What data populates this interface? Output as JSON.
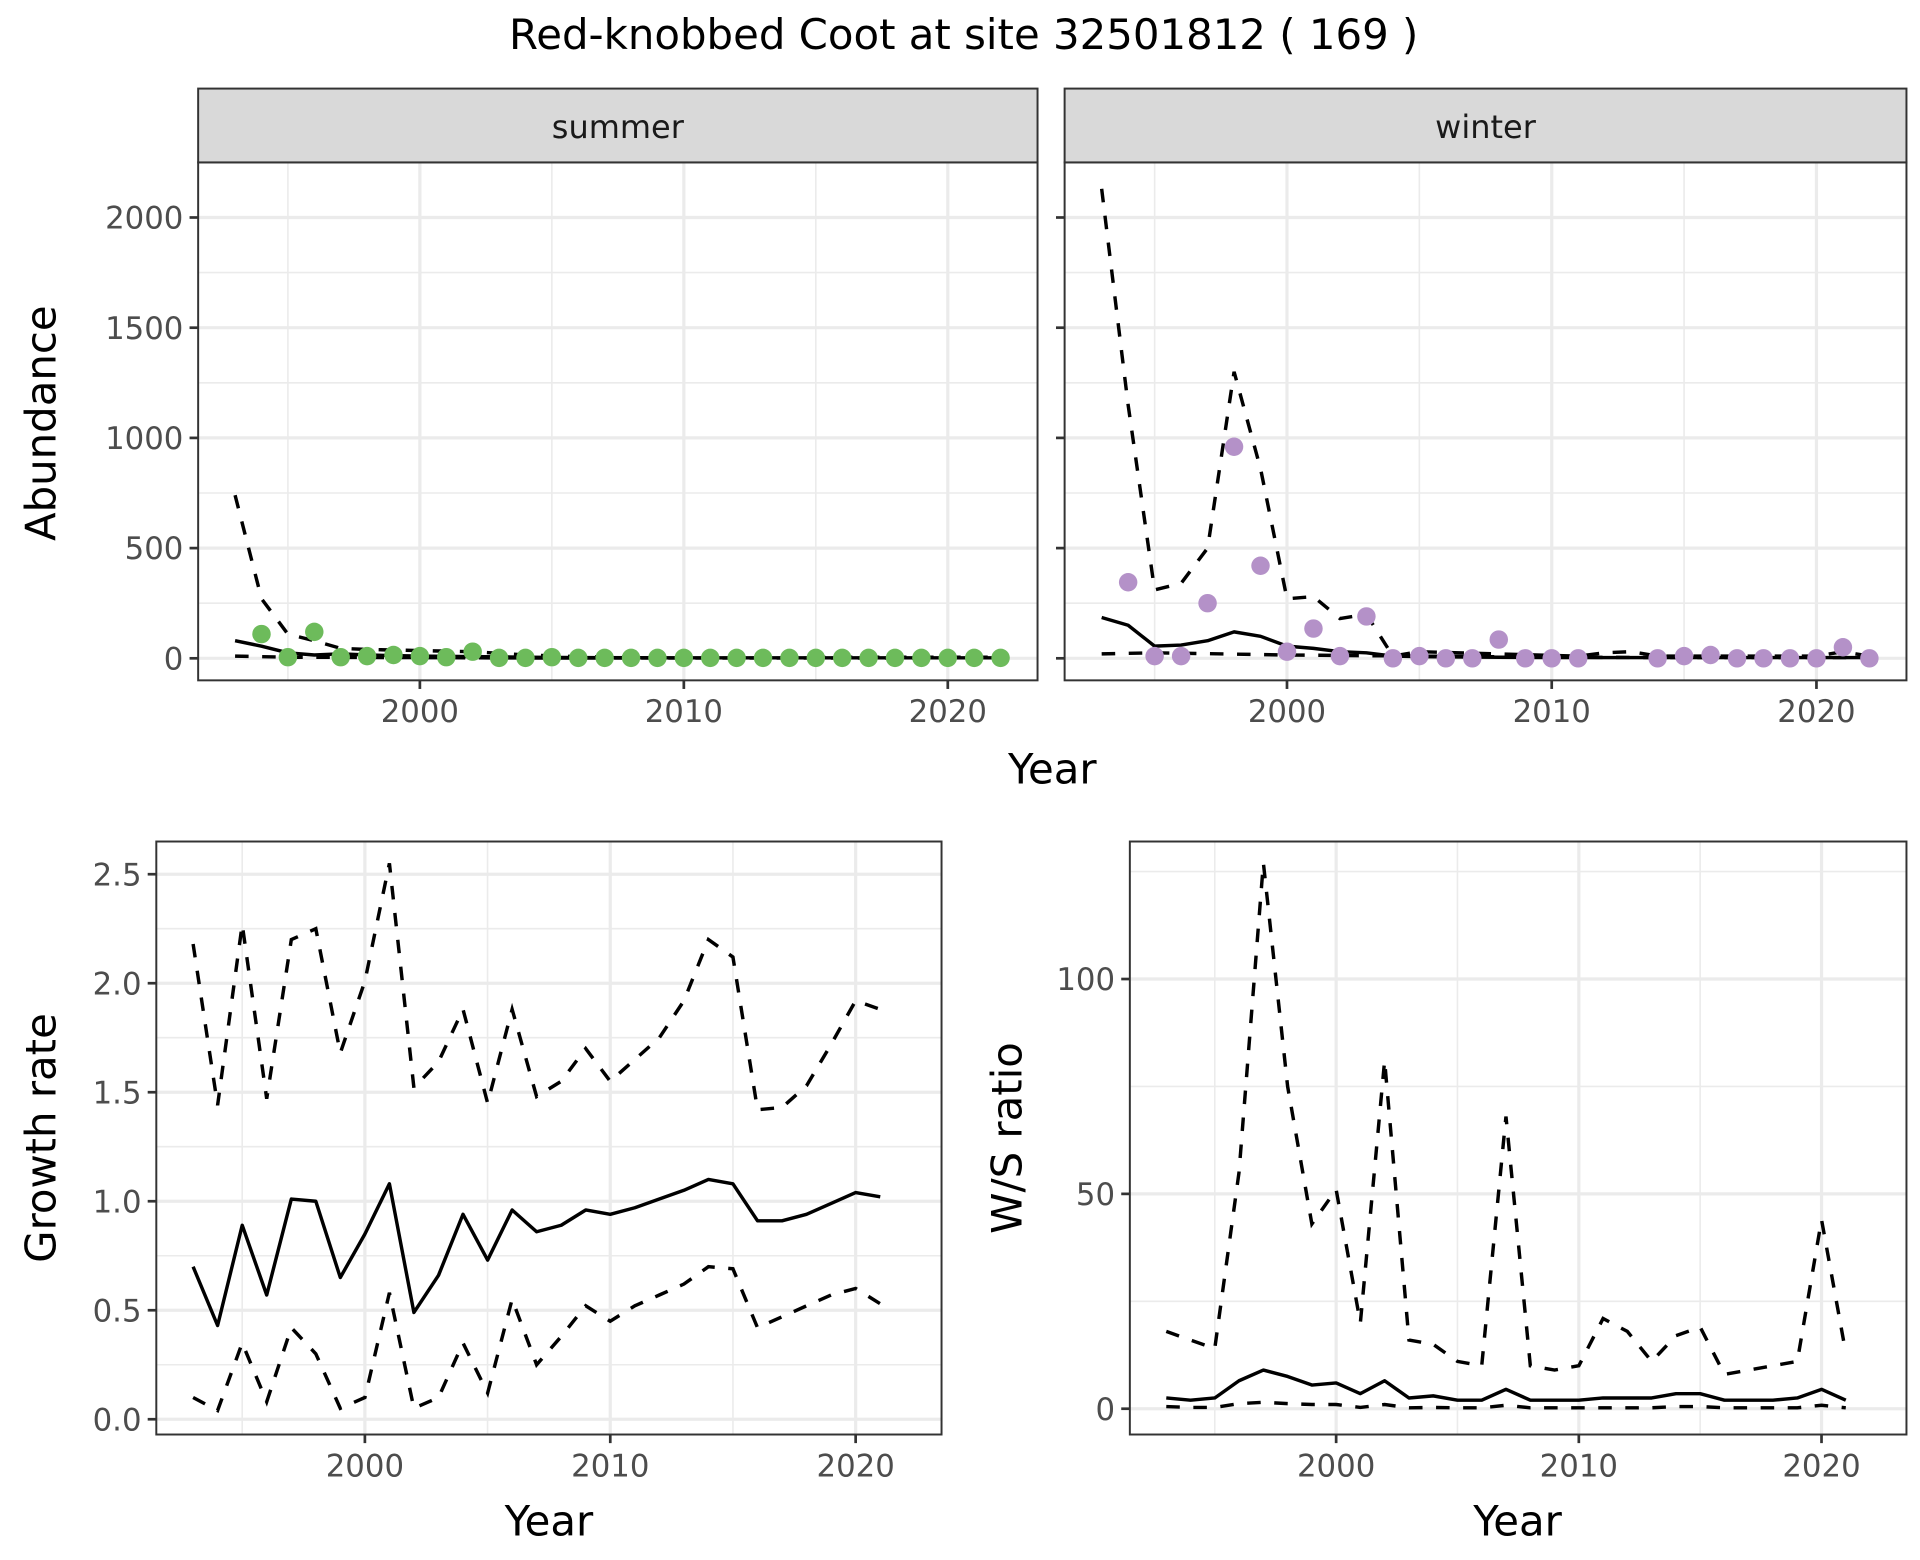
{
  "title": "Red-knobbed Coot at site 32501812 ( 169 )",
  "colors": {
    "summer_points": "#6dbb5b",
    "winter_points": "#b491c8",
    "lines": "#000000",
    "strip_fill": "#d9d9d9",
    "grid": "#ebebeb"
  },
  "chart_data": [
    {
      "type": "scatter",
      "name": "abundance-summer",
      "facet": "summer",
      "xlabel": "Year",
      "ylabel": "Abundance",
      "xlim": [
        1991.6,
        2023.4
      ],
      "ylim": [
        -100,
        2250
      ],
      "x_ticks": [
        2000,
        2010,
        2020
      ],
      "x_tick_labels": [
        "2000",
        "2010",
        "2020"
      ],
      "y_ticks": [
        0,
        500,
        1000,
        1500,
        2000
      ],
      "y_tick_labels": [
        "0",
        "500",
        "1000",
        "1500",
        "2000"
      ],
      "grid": true,
      "points": {
        "x": [
          1994,
          1995,
          1996,
          1997,
          1998,
          1999,
          2000,
          2001,
          2002,
          2003,
          2004,
          2005,
          2006,
          2007,
          2008,
          2009,
          2010,
          2011,
          2012,
          2013,
          2014,
          2015,
          2016,
          2017,
          2018,
          2019,
          2020,
          2021,
          2022
        ],
        "y": [
          110,
          5,
          120,
          5,
          10,
          15,
          10,
          5,
          30,
          2,
          2,
          5,
          2,
          2,
          2,
          2,
          2,
          2,
          2,
          2,
          2,
          2,
          2,
          2,
          2,
          2,
          2,
          2,
          2
        ]
      },
      "series": [
        {
          "name": "fit",
          "style": "solid",
          "x": [
            1993,
            1994,
            1995,
            1996,
            1997,
            1998,
            2000,
            2002,
            2004,
            2006,
            2010,
            2015,
            2020,
            2022
          ],
          "y": [
            80,
            55,
            25,
            15,
            20,
            15,
            10,
            8,
            5,
            3,
            2,
            2,
            2,
            2
          ]
        },
        {
          "name": "upper",
          "style": "dashed",
          "x": [
            1993,
            1994,
            1995,
            1996,
            1997,
            1998,
            2000,
            2002,
            2004,
            2006,
            2010,
            2015,
            2020,
            2022
          ],
          "y": [
            740,
            270,
            110,
            80,
            45,
            40,
            35,
            30,
            15,
            8,
            5,
            5,
            5,
            5
          ]
        },
        {
          "name": "lower",
          "style": "dashed",
          "x": [
            1993,
            1995,
            2000,
            2005,
            2010,
            2015,
            2020,
            2022
          ],
          "y": [
            10,
            5,
            3,
            1,
            1,
            1,
            1,
            1
          ]
        }
      ]
    },
    {
      "type": "scatter",
      "name": "abundance-winter",
      "facet": "winter",
      "xlabel": "Year",
      "ylabel": "Abundance",
      "xlim": [
        1991.6,
        2023.4
      ],
      "ylim": [
        -100,
        2250
      ],
      "x_ticks": [
        2000,
        2010,
        2020
      ],
      "x_tick_labels": [
        "2000",
        "2010",
        "2020"
      ],
      "y_ticks": [
        0,
        500,
        1000,
        1500,
        2000
      ],
      "grid": true,
      "points": {
        "x": [
          1994,
          1995,
          1996,
          1997,
          1998,
          1999,
          2000,
          2001,
          2002,
          2003,
          2004,
          2005,
          2006,
          2007,
          2008,
          2009,
          2010,
          2011,
          2014,
          2015,
          2016,
          2017,
          2018,
          2019,
          2020,
          2021,
          2022
        ],
        "y": [
          345,
          10,
          10,
          250,
          960,
          420,
          30,
          135,
          10,
          190,
          0,
          10,
          0,
          0,
          85,
          0,
          0,
          0,
          0,
          10,
          15,
          0,
          0,
          0,
          0,
          50,
          0
        ]
      },
      "series": [
        {
          "name": "fit",
          "style": "solid",
          "x": [
            1993,
            1994,
            1995,
            1996,
            1997,
            1998,
            1999,
            2000,
            2001,
            2002,
            2003,
            2004,
            2005,
            2008,
            2010,
            2015,
            2020,
            2022
          ],
          "y": [
            185,
            150,
            55,
            60,
            80,
            120,
            100,
            55,
            45,
            30,
            25,
            10,
            8,
            5,
            3,
            3,
            3,
            3
          ]
        },
        {
          "name": "upper",
          "style": "dashed",
          "x": [
            1993,
            1994,
            1995,
            1996,
            1997,
            1998,
            1999,
            2000,
            2001,
            2002,
            2003,
            2004,
            2005,
            2008,
            2011,
            2012,
            2013,
            2014,
            2020,
            2021,
            2022
          ],
          "y": [
            2130,
            1150,
            310,
            340,
            500,
            1300,
            860,
            270,
            280,
            180,
            200,
            10,
            30,
            20,
            10,
            25,
            30,
            10,
            10,
            30,
            10
          ]
        },
        {
          "name": "lower",
          "style": "dashed",
          "x": [
            1993,
            1995,
            2000,
            2005,
            2010,
            2015,
            2020,
            2022
          ],
          "y": [
            20,
            25,
            15,
            10,
            5,
            3,
            3,
            3
          ]
        }
      ]
    },
    {
      "type": "line",
      "name": "growth-rate",
      "xlabel": "Year",
      "ylabel": "Growth rate",
      "xlim": [
        1991.5,
        2023.5
      ],
      "ylim": [
        -0.07,
        2.65
      ],
      "x_ticks": [
        2000,
        2010,
        2020
      ],
      "x_tick_labels": [
        "2000",
        "2010",
        "2020"
      ],
      "y_ticks": [
        0.0,
        0.5,
        1.0,
        1.5,
        2.0,
        2.5
      ],
      "y_tick_labels": [
        "0.0",
        "0.5",
        "1.0",
        "1.5",
        "2.0",
        "2.5"
      ],
      "grid": true,
      "x": [
        1993,
        1994,
        1995,
        1996,
        1997,
        1998,
        1999,
        2000,
        2001,
        2002,
        2003,
        2004,
        2005,
        2006,
        2007,
        2008,
        2009,
        2010,
        2011,
        2012,
        2013,
        2014,
        2015,
        2016,
        2017,
        2018,
        2019,
        2020,
        2021
      ],
      "series": [
        {
          "name": "estimate",
          "style": "solid",
          "values": [
            0.7,
            0.43,
            0.89,
            0.57,
            1.01,
            1.0,
            0.65,
            0.85,
            1.08,
            0.49,
            0.66,
            0.94,
            0.73,
            0.96,
            0.86,
            0.89,
            0.96,
            0.94,
            0.97,
            1.01,
            1.05,
            1.1,
            1.08,
            0.91,
            0.91,
            0.94,
            0.99,
            1.04,
            1.02
          ]
        },
        {
          "name": "upper",
          "style": "dashed",
          "values": [
            2.18,
            1.44,
            2.27,
            1.47,
            2.2,
            2.25,
            1.68,
            2.01,
            2.55,
            1.52,
            1.64,
            1.88,
            1.45,
            1.88,
            1.48,
            1.55,
            1.7,
            1.55,
            1.65,
            1.75,
            1.92,
            2.2,
            2.12,
            1.42,
            1.43,
            1.53,
            1.72,
            1.92,
            1.88
          ]
        },
        {
          "name": "lower",
          "style": "dashed",
          "values": [
            0.1,
            0.04,
            0.35,
            0.08,
            0.42,
            0.3,
            0.05,
            0.1,
            0.58,
            0.05,
            0.1,
            0.35,
            0.12,
            0.55,
            0.25,
            0.38,
            0.52,
            0.45,
            0.52,
            0.57,
            0.62,
            0.7,
            0.69,
            0.42,
            0.47,
            0.52,
            0.57,
            0.6,
            0.53
          ]
        }
      ]
    },
    {
      "type": "line",
      "name": "ws-ratio",
      "xlabel": "Year",
      "ylabel": "W/S ratio",
      "xlim": [
        1991.5,
        2023.5
      ],
      "ylim": [
        -6,
        132
      ],
      "x_ticks": [
        2000,
        2010,
        2020
      ],
      "x_tick_labels": [
        "2000",
        "2010",
        "2020"
      ],
      "y_ticks": [
        0,
        50,
        100
      ],
      "y_tick_labels": [
        "0",
        "50",
        "100"
      ],
      "grid": true,
      "x": [
        1993,
        1994,
        1995,
        1996,
        1997,
        1998,
        1999,
        2000,
        2001,
        2002,
        2003,
        2004,
        2005,
        2006,
        2007,
        2008,
        2009,
        2010,
        2011,
        2012,
        2013,
        2014,
        2015,
        2016,
        2017,
        2018,
        2019,
        2020,
        2021
      ],
      "series": [
        {
          "name": "estimate",
          "style": "solid",
          "values": [
            2.5,
            2.0,
            2.5,
            6.5,
            9.0,
            7.5,
            5.5,
            6.0,
            3.5,
            6.5,
            2.5,
            3.0,
            2.0,
            2.0,
            4.5,
            2.0,
            2.0,
            2.0,
            2.5,
            2.5,
            2.5,
            3.5,
            3.5,
            2.0,
            2.0,
            2.0,
            2.5,
            4.5,
            2.0
          ]
        },
        {
          "name": "upper",
          "style": "dashed",
          "values": [
            18,
            16,
            14,
            55,
            127,
            75,
            43,
            51,
            20,
            81,
            16,
            15,
            11,
            10,
            68,
            10,
            9,
            10,
            21,
            18,
            11,
            17,
            19,
            8,
            9,
            10,
            11,
            44,
            13
          ]
        },
        {
          "name": "lower",
          "style": "dashed",
          "values": [
            0.5,
            0.3,
            0.3,
            1.2,
            1.5,
            1.2,
            1.0,
            1.0,
            0.3,
            1.0,
            0.2,
            0.3,
            0.2,
            0.2,
            0.8,
            0.2,
            0.2,
            0.2,
            0.2,
            0.2,
            0.2,
            0.5,
            0.5,
            0.2,
            0.2,
            0.2,
            0.2,
            0.8,
            0.2
          ]
        }
      ]
    }
  ]
}
